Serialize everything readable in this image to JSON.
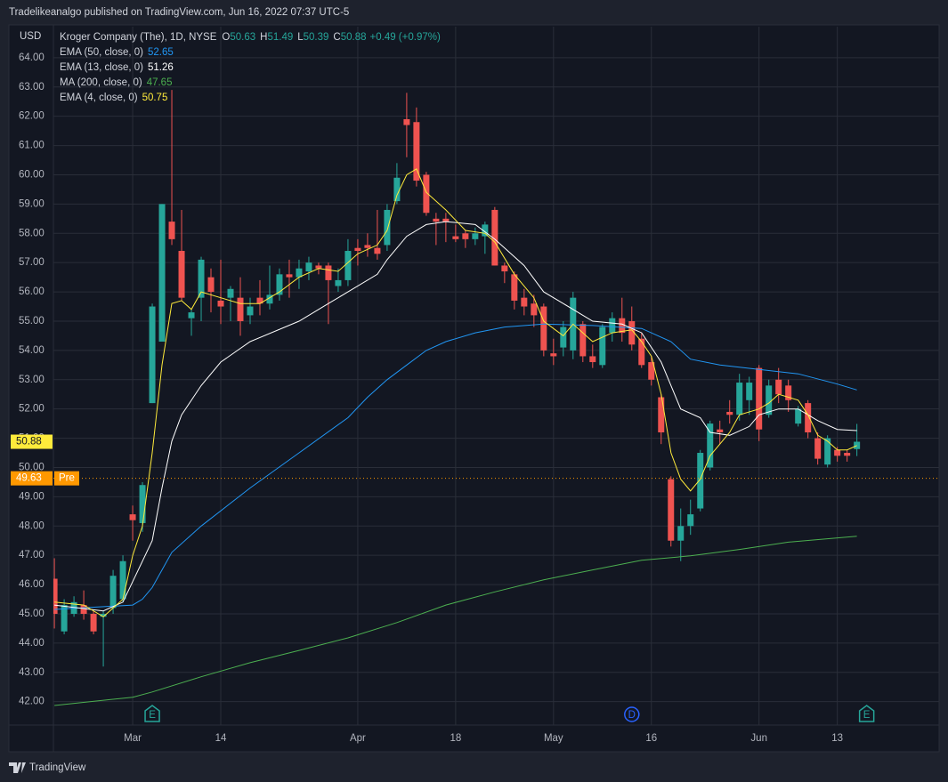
{
  "header": "Tradelikeanalgo published on TradingView.com, Jun 16, 2022 07:37 UTC-5",
  "footer": "TradingView",
  "chart_data": {
    "type": "candlestick",
    "currency": "USD",
    "legend": {
      "symbol": "Kroger Company (The), 1D, NYSE",
      "letters": [
        "O",
        "H",
        "L",
        "C"
      ],
      "change": "+0.49 (+0.97%)"
    },
    "categories": [
      null,
      null,
      null,
      null,
      null,
      null,
      null,
      null,
      "Mar",
      null,
      null,
      null,
      null,
      null,
      null,
      null,
      null,
      "14",
      null,
      null,
      null,
      null,
      null,
      null,
      null,
      null,
      null,
      null,
      null,
      null,
      null,
      "Apr",
      null,
      null,
      null,
      null,
      null,
      null,
      null,
      null,
      null,
      "18",
      null,
      null,
      null,
      null,
      null,
      null,
      null,
      null,
      null,
      "May",
      null,
      null,
      null,
      null,
      null,
      null,
      null,
      null,
      null,
      "16",
      null,
      null,
      null,
      null,
      null,
      null,
      null,
      null,
      null,
      null,
      "Jun",
      null,
      null,
      null,
      null,
      null,
      null,
      null,
      "13",
      null,
      null
    ],
    "open": [
      46.2,
      44.4,
      45.0,
      45.3,
      45.0,
      44.9,
      45.2,
      45.5,
      48.4,
      48.1,
      52.2,
      54.3,
      58.4,
      57.4,
      55.1,
      55.8,
      56.5,
      55.7,
      55.8,
      55.8,
      55.2,
      55.8,
      55.6,
      55.9,
      56.6,
      56.5,
      56.7,
      56.9,
      56.9,
      56.2,
      56.4,
      57.5,
      57.6,
      57.5,
      57.6,
      59.1,
      61.9,
      61.8,
      60.0,
      58.5,
      58.5,
      57.9,
      58.0,
      57.8,
      57.9,
      58.8,
      56.9,
      56.6,
      55.8,
      55.6,
      55.5,
      53.9,
      54.1,
      54.0,
      54.9,
      53.8,
      53.5,
      54.6,
      55.1,
      55.0,
      54.4,
      53.6,
      52.4,
      49.6,
      47.5,
      48.0,
      48.6,
      50.0,
      51.3,
      51.9,
      51.8,
      52.3,
      53.4,
      51.8,
      53.0,
      52.8,
      51.5,
      52.2,
      51.0,
      50.1,
      50.6,
      50.5,
      50.63
    ],
    "high": [
      46.9,
      45.5,
      45.6,
      45.8,
      45.1,
      45.1,
      46.5,
      47.0,
      48.7,
      49.5,
      55.6,
      59.0,
      62.9,
      58.8,
      55.4,
      57.2,
      56.8,
      57.1,
      56.2,
      56.5,
      55.8,
      56.4,
      56.9,
      56.8,
      57.1,
      57.1,
      57.2,
      57.0,
      57.0,
      56.8,
      57.8,
      57.8,
      58.0,
      58.8,
      59.0,
      60.4,
      62.8,
      62.3,
      60.1,
      58.7,
      58.7,
      58.3,
      58.1,
      58.2,
      58.4,
      58.9,
      57.0,
      56.7,
      56.1,
      55.9,
      55.6,
      54.4,
      55.0,
      56.0,
      55.0,
      54.2,
      54.9,
      55.3,
      55.8,
      55.5,
      54.6,
      53.8,
      52.5,
      49.7,
      48.6,
      48.9,
      50.6,
      51.6,
      51.6,
      52.3,
      53.2,
      53.1,
      53.5,
      53.0,
      53.4,
      53.0,
      52.1,
      52.3,
      51.2,
      51.1,
      50.7,
      50.6,
      51.49
    ],
    "low": [
      44.5,
      44.3,
      44.9,
      44.8,
      44.3,
      43.2,
      45.0,
      45.4,
      47.5,
      47.8,
      52.2,
      54.3,
      57.6,
      55.7,
      54.5,
      55.0,
      55.3,
      54.9,
      55.0,
      54.5,
      54.9,
      55.2,
      55.4,
      55.7,
      55.8,
      56.1,
      56.4,
      56.6,
      54.9,
      56.0,
      56.2,
      56.9,
      57.2,
      57.1,
      57.4,
      59.0,
      60.6,
      59.6,
      58.6,
      57.6,
      57.7,
      57.7,
      57.5,
      57.6,
      57.3,
      56.9,
      56.3,
      55.4,
      55.2,
      54.8,
      53.8,
      53.5,
      53.8,
      53.7,
      53.6,
      53.4,
      53.4,
      54.3,
      54.3,
      54.0,
      53.4,
      52.8,
      50.8,
      47.3,
      46.8,
      47.7,
      48.5,
      49.9,
      50.8,
      51.5,
      51.6,
      51.8,
      50.9,
      51.7,
      52.2,
      51.9,
      51.4,
      51.0,
      50.1,
      50.0,
      50.2,
      50.2,
      50.39
    ],
    "close": [
      45.0,
      45.3,
      45.4,
      45.0,
      44.4,
      45.0,
      46.3,
      46.8,
      48.2,
      49.4,
      55.5,
      59.0,
      57.8,
      55.8,
      55.3,
      57.1,
      56.0,
      55.5,
      56.1,
      55.0,
      55.5,
      55.6,
      55.9,
      56.6,
      56.5,
      56.8,
      57.0,
      56.8,
      56.4,
      56.4,
      57.4,
      57.4,
      57.5,
      57.3,
      58.8,
      59.9,
      61.7,
      59.8,
      58.7,
      58.4,
      58.4,
      57.8,
      57.8,
      58.0,
      58.3,
      56.9,
      56.7,
      55.7,
      55.5,
      55.2,
      54.0,
      53.8,
      54.8,
      55.8,
      53.8,
      53.6,
      54.8,
      55.1,
      54.6,
      54.2,
      53.5,
      53.0,
      51.2,
      47.5,
      48.0,
      48.4,
      50.5,
      51.5,
      51.2,
      51.8,
      52.9,
      52.9,
      51.3,
      52.8,
      52.5,
      52.3,
      52.0,
      51.2,
      50.3,
      51.0,
      50.4,
      50.4,
      50.88
    ],
    "up_color": "#26a69a",
    "down_color": "#ef5350",
    "lines": [
      {
        "name": "EMA (50, close, 0)",
        "color": "#2196f3",
        "x": [
          0,
          8,
          9,
          10,
          12,
          15,
          20,
          25,
          30,
          32,
          34,
          36,
          38,
          40,
          43,
          46,
          50,
          55,
          60,
          63,
          65,
          68,
          72,
          76,
          80,
          82
        ],
        "values": [
          45.15,
          45.3,
          45.5,
          45.9,
          47.1,
          48.0,
          49.3,
          50.5,
          51.7,
          52.4,
          53.0,
          53.5,
          54.0,
          54.3,
          54.6,
          54.8,
          54.9,
          54.85,
          54.75,
          54.3,
          53.7,
          53.5,
          53.35,
          53.2,
          52.85,
          52.65
        ]
      },
      {
        "name": "EMA (13, close, 0)",
        "color": "#ffffff",
        "x": [
          0,
          5,
          7,
          9,
          10,
          11,
          12,
          13,
          15,
          17,
          20,
          25,
          28,
          30,
          33,
          34,
          36,
          38,
          40,
          43,
          45,
          48,
          50,
          52,
          55,
          58,
          60,
          62,
          63,
          64,
          66,
          67,
          69,
          71,
          72,
          74,
          76,
          78,
          80,
          82
        ],
        "values": [
          45.3,
          45.1,
          45.4,
          46.8,
          47.5,
          49.3,
          50.9,
          51.8,
          52.8,
          53.6,
          54.3,
          55.0,
          55.6,
          56.0,
          56.6,
          57.1,
          57.9,
          58.3,
          58.4,
          58.3,
          57.8,
          56.9,
          56.0,
          55.6,
          55.0,
          54.9,
          54.6,
          53.6,
          52.8,
          52.0,
          51.7,
          51.2,
          51.1,
          51.4,
          51.8,
          52.0,
          52.0,
          51.6,
          51.3,
          51.26
        ]
      },
      {
        "name": "MA (200, close, 0)",
        "color": "#4caf50",
        "x": [
          0,
          8,
          10,
          15,
          20,
          25,
          30,
          35,
          40,
          45,
          50,
          55,
          60,
          65,
          70,
          75,
          82
        ],
        "values": [
          41.87,
          42.15,
          42.33,
          42.85,
          43.33,
          43.75,
          44.18,
          44.7,
          45.3,
          45.75,
          46.16,
          46.5,
          46.83,
          46.98,
          47.2,
          47.45,
          47.65
        ]
      },
      {
        "name": "EMA (4, close, 0)",
        "color": "#ffeb3b",
        "x": [
          0,
          3,
          5,
          7,
          8,
          9,
          10,
          11,
          12,
          13,
          14,
          15,
          17,
          19,
          21,
          23,
          25,
          27,
          29,
          31,
          33,
          34,
          35,
          36,
          37,
          38,
          40,
          42,
          44,
          45,
          47,
          49,
          50,
          52,
          53,
          55,
          57,
          59,
          60,
          61,
          62,
          63,
          64,
          65,
          66,
          67,
          68,
          69,
          70,
          72,
          73,
          74,
          76,
          77,
          78,
          79,
          80,
          81,
          82
        ],
        "values": [
          45.4,
          45.3,
          44.9,
          45.5,
          47.0,
          48.0,
          50.5,
          53.5,
          55.6,
          55.7,
          55.4,
          56.0,
          55.8,
          55.6,
          55.6,
          56.0,
          56.5,
          56.8,
          56.7,
          57.3,
          57.6,
          58.1,
          59.3,
          60.0,
          60.2,
          59.4,
          58.8,
          58.1,
          58.0,
          57.7,
          56.6,
          55.8,
          55.0,
          54.5,
          54.9,
          54.3,
          54.6,
          54.7,
          54.3,
          53.8,
          52.5,
          50.5,
          49.6,
          49.2,
          49.6,
          50.4,
          50.8,
          51.2,
          51.8,
          52.0,
          52.2,
          52.5,
          52.3,
          51.8,
          51.1,
          50.9,
          50.6,
          50.6,
          50.75
        ]
      }
    ],
    "pre_market": {
      "value": 49.63,
      "label": "Pre",
      "color": "#ff9800"
    },
    "events": [
      {
        "label": "E",
        "x": 10
      },
      {
        "label": "D",
        "x": 59
      },
      {
        "label": "E",
        "x": 83
      }
    ],
    "xlim": [
      -0.1,
      90.4
    ],
    "ylim": [
      41.2,
      65.06
    ],
    "yticks": [
      {
        "value": 42,
        "label": "42.00"
      },
      {
        "value": 43,
        "label": "43.00"
      },
      {
        "value": 44,
        "label": "44.00"
      },
      {
        "value": 45,
        "label": "45.00"
      },
      {
        "value": 46,
        "label": "46.00"
      },
      {
        "value": 47,
        "label": "47.00"
      },
      {
        "value": 48,
        "label": "48.00"
      },
      {
        "value": 49,
        "label": "49.00"
      },
      {
        "value": 50,
        "label": "50.00"
      },
      {
        "value": 51,
        "label": "51.00"
      },
      {
        "value": 52,
        "label": "52.00"
      },
      {
        "value": 53,
        "label": "53.00"
      },
      {
        "value": 54,
        "label": "54.00"
      },
      {
        "value": 55,
        "label": "55.00"
      },
      {
        "value": 56,
        "label": "56.00"
      },
      {
        "value": 57,
        "label": "57.00"
      },
      {
        "value": 58,
        "label": "58.00"
      },
      {
        "value": 59,
        "label": "59.00"
      },
      {
        "value": 60,
        "label": "60.00"
      },
      {
        "value": 61,
        "label": "61.00"
      },
      {
        "value": 62,
        "label": "62.00"
      },
      {
        "value": 63,
        "label": "63.00"
      },
      {
        "value": 64,
        "label": "64.00"
      }
    ],
    "grid": true
  }
}
